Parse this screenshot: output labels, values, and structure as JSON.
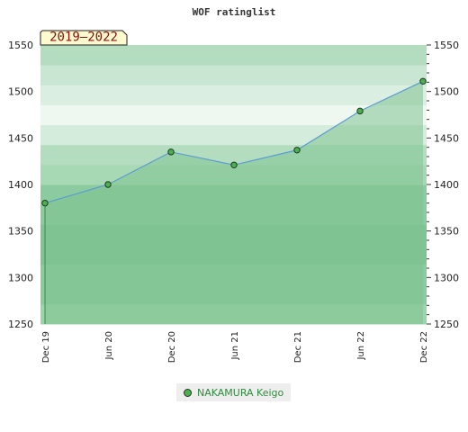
{
  "chart_data": {
    "type": "area",
    "title": "WOF ratinglist",
    "badge": "2019–2022",
    "x": [
      "Dec 19",
      "Jun 20",
      "Dec 20",
      "Jun 21",
      "Dec 21",
      "Jun 22",
      "Dec 22"
    ],
    "ylim": [
      1250,
      1550
    ],
    "yticks": [
      1250,
      1300,
      1350,
      1400,
      1450,
      1500,
      1550
    ],
    "series": [
      {
        "name": "NAKAMURA Keigo",
        "values": [
          1380,
          1400,
          1435,
          1421,
          1437,
          1479,
          1511
        ]
      }
    ],
    "legend_position": "bottom-center",
    "band_colors": [
      "#9dd4ac",
      "#8ccb9f",
      "#8ccb9f",
      "#7ec494",
      "#7ec494",
      "#8ccb9f",
      "#8ccb9f",
      "#a8d9b5",
      "#b4ddc0",
      "#d4ecdc",
      "#eef8f1",
      "#daeee1",
      "#c8e6d1",
      "#b4ddc0"
    ],
    "colors": {
      "area": "#7fc38f",
      "line": "#5b9bd5",
      "marker": "#4caf50",
      "marker_edge": "#1e3a1e",
      "badge_bg": "#fffacd"
    }
  }
}
